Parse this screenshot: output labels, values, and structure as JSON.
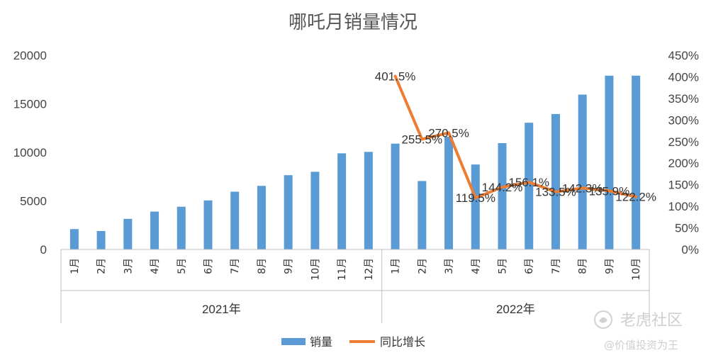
{
  "chart_data": {
    "type": "bar",
    "title": "哪吒月销量情况",
    "categories": [
      "1月",
      "2月",
      "3月",
      "4月",
      "5月",
      "6月",
      "7月",
      "8月",
      "9月",
      "10月",
      "11月",
      "12月",
      "1月",
      "2月",
      "3月",
      "4月",
      "5月",
      "6月",
      "7月",
      "8月",
      "9月",
      "10月"
    ],
    "groups": [
      {
        "label": "2021年",
        "count": 12
      },
      {
        "label": "2022年",
        "count": 10
      }
    ],
    "series": [
      {
        "name": "销量",
        "type": "bar",
        "axis": "left",
        "color": "#5b9bd5",
        "values": [
          2100,
          1900,
          3150,
          3900,
          4400,
          5050,
          5950,
          6550,
          7650,
          8000,
          9900,
          10050,
          10900,
          7050,
          11600,
          8750,
          10950,
          13050,
          13950,
          15950,
          17900,
          17900
        ]
      },
      {
        "name": "同比增长",
        "type": "line",
        "axis": "right",
        "color": "#ed7d31",
        "values": [
          null,
          null,
          null,
          null,
          null,
          null,
          null,
          null,
          null,
          null,
          null,
          null,
          4.015,
          2.555,
          2.705,
          1.195,
          1.442,
          1.561,
          1.335,
          1.423,
          1.359,
          1.222
        ],
        "labels": [
          null,
          null,
          null,
          null,
          null,
          null,
          null,
          null,
          null,
          null,
          null,
          null,
          "401.5%",
          "255.5%",
          "270.5%",
          "119.5%",
          "144.2%",
          "156.1%",
          "133.5%",
          "142.3%",
          "135.9%",
          "122.2%"
        ]
      }
    ],
    "yAxisLeft": {
      "min": 0,
      "max": 20000,
      "ticks": [
        "0",
        "5000",
        "10000",
        "15000",
        "20000"
      ]
    },
    "yAxisRight": {
      "min": 0,
      "max": 4.5,
      "ticks": [
        "0%",
        "50%",
        "100%",
        "150%",
        "200%",
        "250%",
        "300%",
        "350%",
        "400%",
        "450%"
      ]
    },
    "grid": false,
    "legend_position": "bottom"
  },
  "watermark": {
    "brand": "老虎社区",
    "author": "@价值投资为王"
  }
}
